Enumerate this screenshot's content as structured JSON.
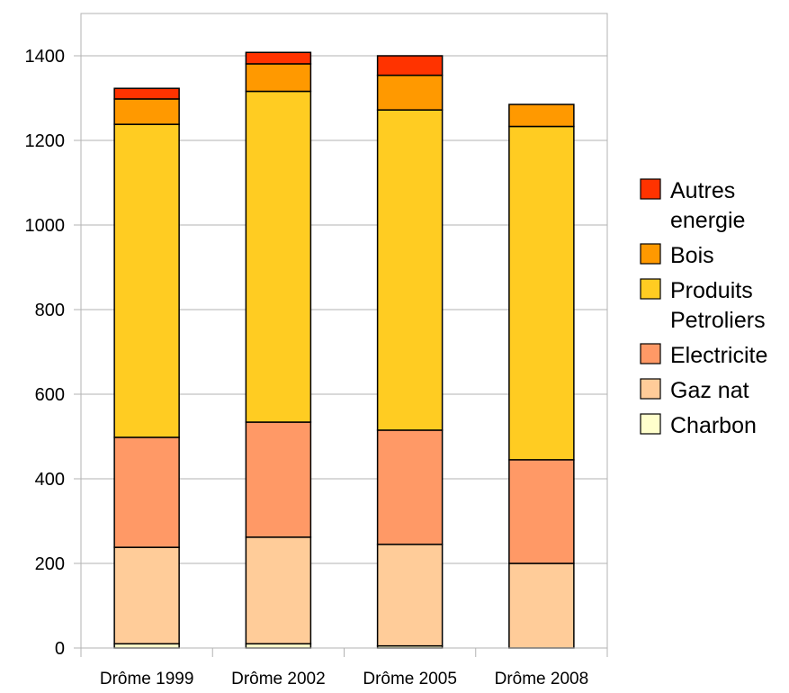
{
  "chart_data": {
    "type": "bar",
    "stacked": true,
    "categories": [
      "Drôme 1999",
      "Drôme 2002",
      "Drôme 2005",
      "Drôme 2008"
    ],
    "series": [
      {
        "name": "Charbon",
        "color": "#ffffcc",
        "values": [
          10,
          10,
          5,
          0
        ]
      },
      {
        "name": "Gaz nat",
        "color": "#ffcc99",
        "values": [
          228,
          252,
          240,
          200
        ]
      },
      {
        "name": "Electricite",
        "color": "#ff9966",
        "values": [
          260,
          272,
          270,
          245
        ]
      },
      {
        "name": "Produits Petroliers",
        "color": "#ffcc22",
        "values": [
          740,
          782,
          757,
          788
        ]
      },
      {
        "name": "Bois",
        "color": "#ff9900",
        "values": [
          60,
          65,
          82,
          52
        ]
      },
      {
        "name": "Autres energie",
        "color": "#ff3300",
        "values": [
          25,
          27,
          46,
          0
        ]
      }
    ],
    "legend_labels": [
      "Autres energie",
      "Bois",
      "Produits Petroliers",
      "Electricite",
      "Gaz nat",
      "Charbon"
    ],
    "yticks": [
      0,
      200,
      400,
      600,
      800,
      1000,
      1200,
      1400
    ],
    "ylim": [
      0,
      1400
    ],
    "grid": true,
    "legend_position": "right",
    "title": "",
    "xlabel": "",
    "ylabel": ""
  }
}
